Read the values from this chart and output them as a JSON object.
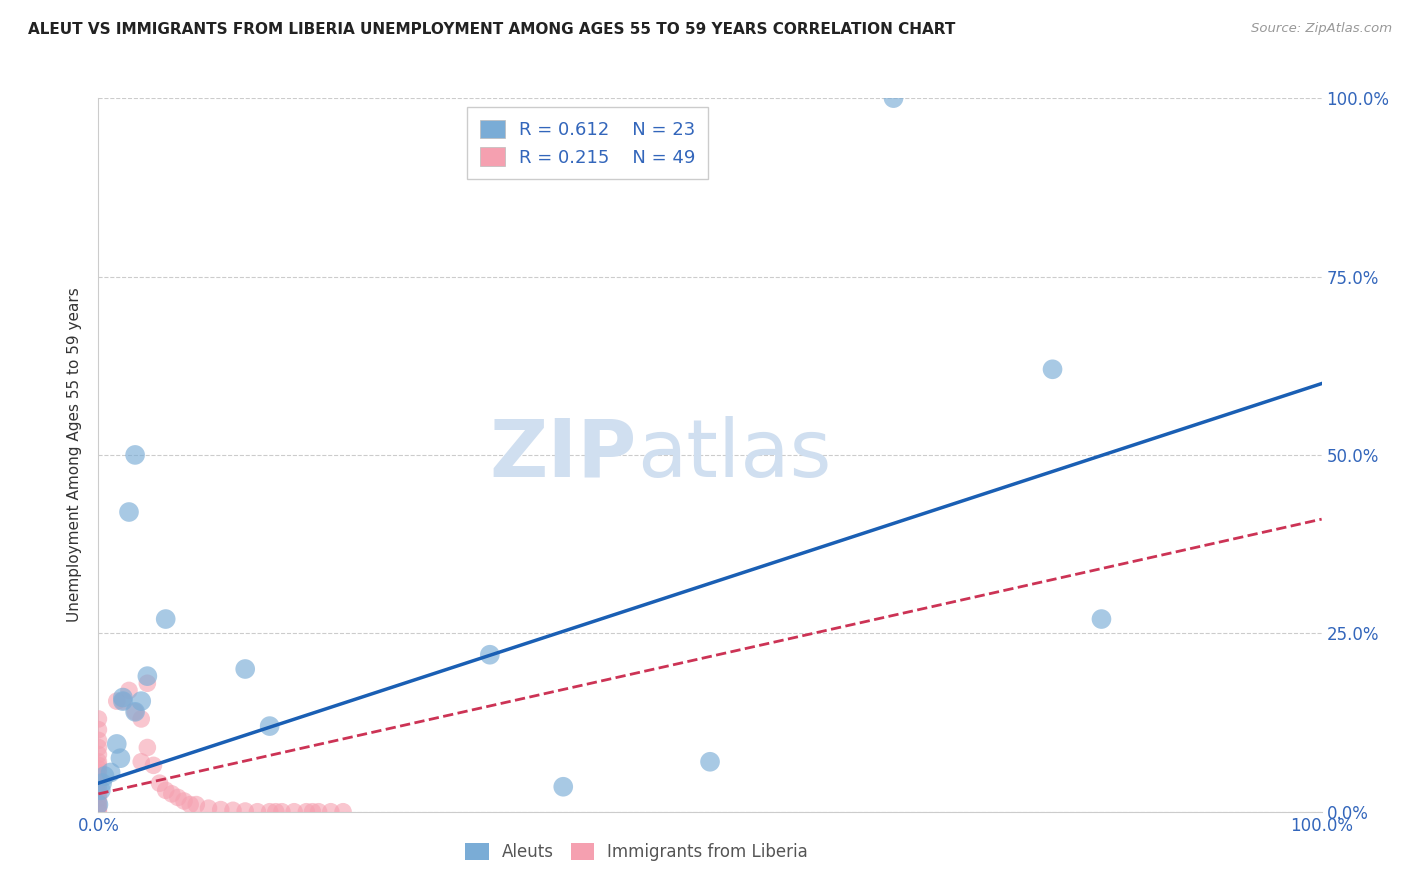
{
  "title": "ALEUT VS IMMIGRANTS FROM LIBERIA UNEMPLOYMENT AMONG AGES 55 TO 59 YEARS CORRELATION CHART",
  "source": "Source: ZipAtlas.com",
  "ylabel": "Unemployment Among Ages 55 to 59 years",
  "xlim": [
    0.0,
    1.0
  ],
  "ylim": [
    0.0,
    1.0
  ],
  "xticks": [
    0.0,
    0.25,
    0.5,
    0.75,
    1.0
  ],
  "yticks": [
    0.0,
    0.25,
    0.5,
    0.75,
    1.0
  ],
  "xticklabels": [
    "0.0%",
    "",
    "",
    "",
    "100.0%"
  ],
  "right_yticklabels": [
    "0.0%",
    "25.0%",
    "50.0%",
    "75.0%",
    "100.0%"
  ],
  "aleuts_R": 0.612,
  "aleuts_N": 23,
  "liberia_R": 0.215,
  "liberia_N": 49,
  "aleut_color": "#7aacd6",
  "liberia_color": "#f5a0b0",
  "aleut_scatter": [
    [
      0.65,
      1.0
    ],
    [
      0.03,
      0.5
    ],
    [
      0.025,
      0.42
    ],
    [
      0.055,
      0.27
    ],
    [
      0.04,
      0.19
    ],
    [
      0.035,
      0.155
    ],
    [
      0.02,
      0.155
    ],
    [
      0.03,
      0.14
    ],
    [
      0.02,
      0.16
    ],
    [
      0.015,
      0.095
    ],
    [
      0.018,
      0.075
    ],
    [
      0.01,
      0.055
    ],
    [
      0.005,
      0.05
    ],
    [
      0.003,
      0.04
    ],
    [
      0.002,
      0.03
    ],
    [
      0.12,
      0.2
    ],
    [
      0.14,
      0.12
    ],
    [
      0.32,
      0.22
    ],
    [
      0.38,
      0.035
    ],
    [
      0.5,
      0.07
    ],
    [
      0.78,
      0.62
    ],
    [
      0.82,
      0.27
    ],
    [
      0.0,
      0.01
    ]
  ],
  "liberia_scatter": [
    [
      0.0,
      0.13
    ],
    [
      0.0,
      0.115
    ],
    [
      0.0,
      0.1
    ],
    [
      0.0,
      0.09
    ],
    [
      0.0,
      0.08
    ],
    [
      0.0,
      0.07
    ],
    [
      0.0,
      0.065
    ],
    [
      0.0,
      0.06
    ],
    [
      0.0,
      0.055
    ],
    [
      0.0,
      0.048
    ],
    [
      0.0,
      0.042
    ],
    [
      0.0,
      0.037
    ],
    [
      0.0,
      0.03
    ],
    [
      0.0,
      0.024
    ],
    [
      0.0,
      0.018
    ],
    [
      0.0,
      0.013
    ],
    [
      0.0,
      0.008
    ],
    [
      0.0,
      0.004
    ],
    [
      0.0,
      0.0
    ],
    [
      0.015,
      0.155
    ],
    [
      0.02,
      0.155
    ],
    [
      0.025,
      0.17
    ],
    [
      0.03,
      0.14
    ],
    [
      0.035,
      0.13
    ],
    [
      0.035,
      0.07
    ],
    [
      0.04,
      0.18
    ],
    [
      0.04,
      0.09
    ],
    [
      0.045,
      0.065
    ],
    [
      0.05,
      0.04
    ],
    [
      0.055,
      0.03
    ],
    [
      0.06,
      0.025
    ],
    [
      0.065,
      0.02
    ],
    [
      0.07,
      0.015
    ],
    [
      0.075,
      0.01
    ],
    [
      0.08,
      0.01
    ],
    [
      0.09,
      0.005
    ],
    [
      0.1,
      0.003
    ],
    [
      0.11,
      0.002
    ],
    [
      0.12,
      0.001
    ],
    [
      0.13,
      0.0
    ],
    [
      0.14,
      0.0
    ],
    [
      0.145,
      0.0
    ],
    [
      0.15,
      0.0
    ],
    [
      0.16,
      0.0
    ],
    [
      0.17,
      0.0
    ],
    [
      0.175,
      0.0
    ],
    [
      0.18,
      0.0
    ],
    [
      0.19,
      0.0
    ],
    [
      0.2,
      0.0
    ]
  ],
  "aleut_line_color": "#1a5fb4",
  "liberia_line_color": "#cc3355",
  "aleut_line": [
    0.0,
    0.04,
    1.0,
    0.6
  ],
  "liberia_line": [
    0.0,
    0.025,
    1.0,
    0.41
  ],
  "watermark_zip": "ZIP",
  "watermark_atlas": "atlas",
  "background_color": "#ffffff",
  "grid_color": "#cccccc",
  "tick_color": "#3366bb"
}
